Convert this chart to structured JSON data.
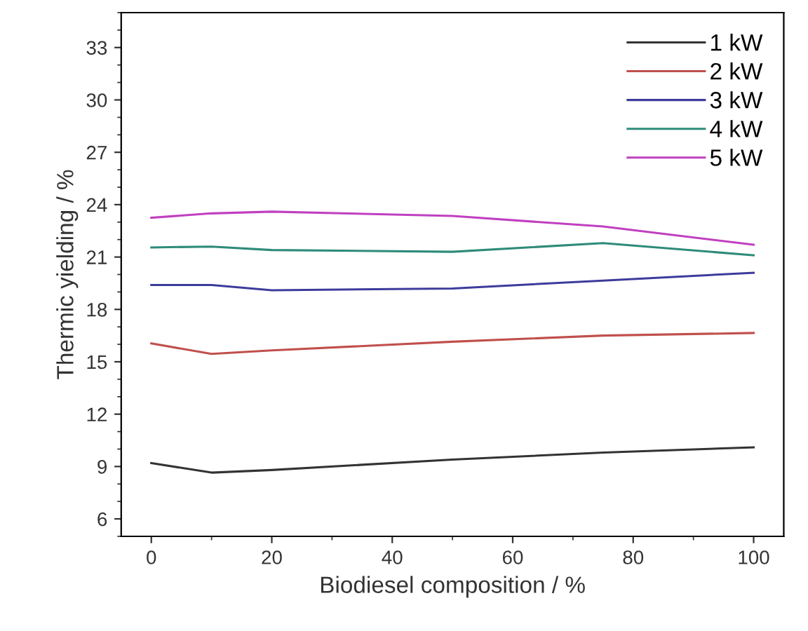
{
  "chart_data": {
    "type": "line",
    "xlabel": "Biodiesel composition / %",
    "ylabel": "Thermic yielding / %",
    "x": [
      0,
      10,
      20,
      50,
      75,
      100
    ],
    "series": [
      {
        "name": "1 kW",
        "color": "#333333",
        "values": [
          9.2,
          8.65,
          8.8,
          9.4,
          9.8,
          10.1
        ]
      },
      {
        "name": "2 kW",
        "color": "#c0504d",
        "values": [
          16.05,
          15.45,
          15.65,
          16.15,
          16.5,
          16.65
        ]
      },
      {
        "name": "3 kW",
        "color": "#3c3c9c",
        "values": [
          19.4,
          19.4,
          19.1,
          19.2,
          19.65,
          20.1
        ]
      },
      {
        "name": "4 kW",
        "color": "#2e8b7a",
        "values": [
          21.55,
          21.6,
          21.4,
          21.3,
          21.8,
          21.1
        ]
      },
      {
        "name": "5 kW",
        "color": "#c040c0",
        "values": [
          23.25,
          23.5,
          23.6,
          23.35,
          22.75,
          21.7
        ]
      }
    ],
    "xlim": [
      -5,
      105
    ],
    "ylim": [
      5,
      35
    ],
    "xticks": [
      0,
      20,
      40,
      60,
      80,
      100
    ],
    "yticks": [
      6,
      9,
      12,
      15,
      18,
      21,
      24,
      27,
      30,
      33
    ],
    "legend": "top right",
    "grid": false,
    "marker": "none",
    "line_style": "solid"
  }
}
